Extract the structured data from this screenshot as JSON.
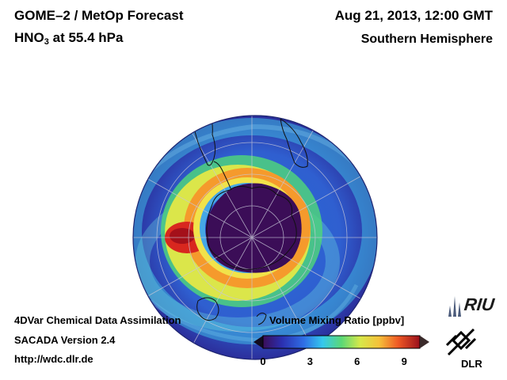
{
  "header": {
    "product": "GOME–2 / MetOp Forecast",
    "species": "HNO",
    "species_sub": "3",
    "level": " at 55.4 hPa",
    "datetime": "Aug 21, 2013, 12:00 GMT",
    "region": "Southern Hemisphere"
  },
  "footer": {
    "line1": "4DVar Chemical Data Assimilation",
    "line2": "SACADA Version 2.4",
    "line3": "http://wdc.dlr.de"
  },
  "colorbar": {
    "title": "Volume Mixing Ratio [ppbv]",
    "ticks": [
      "0",
      "3",
      "6",
      "9"
    ],
    "range": [
      0,
      10
    ]
  },
  "logos": {
    "riu": "RIU",
    "dlr": "DLR"
  },
  "colors": {
    "ocean_low": "#3a3aa8",
    "vortex_core": "#3a0f5c",
    "high": "#d0261e"
  }
}
